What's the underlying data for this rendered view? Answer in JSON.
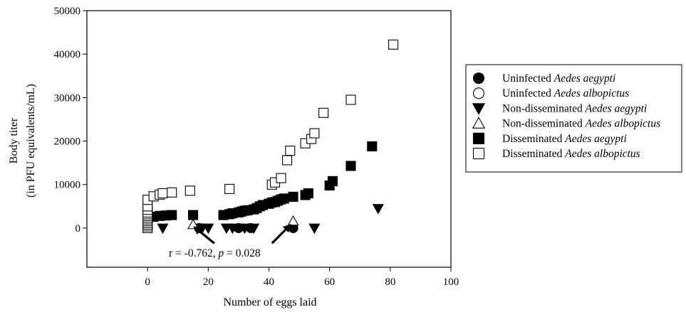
{
  "chart_data": {
    "type": "scatter",
    "xlabel": "Number of eggs laid",
    "ylabel": [
      "Body titer",
      "(in PFU equivalents/mL)"
    ],
    "xlim": [
      -20,
      100
    ],
    "ylim": [
      -9000,
      50000
    ],
    "xticks": [
      0,
      20,
      40,
      60,
      80,
      100
    ],
    "yticks": [
      0,
      10000,
      20000,
      30000,
      40000,
      50000
    ],
    "grid": false,
    "legend_position": "right",
    "series": [
      {
        "name": "Uninfected Aedes aegypti",
        "label_plain": "Uninfected ",
        "label_italic": "Aedes aegypti",
        "marker": "circle",
        "filled": true,
        "color": "#000000",
        "points": [
          [
            17,
            0
          ],
          [
            30,
            0
          ],
          [
            34,
            0
          ],
          [
            48,
            0
          ]
        ]
      },
      {
        "name": "Uninfected Aedes albopictus",
        "label_plain": "Uninfected ",
        "label_italic": "Aedes albopictus",
        "marker": "circle",
        "filled": false,
        "color": "#000000",
        "points": [
          [
            0,
            0
          ]
        ]
      },
      {
        "name": "Non-disseminated Aedes aegypti",
        "label_plain": "Non-disseminated ",
        "label_italic": "Aedes aegypti",
        "marker": "triangle-down",
        "filled": true,
        "color": "#000000",
        "points": [
          [
            5,
            0
          ],
          [
            18,
            0
          ],
          [
            20,
            0
          ],
          [
            26,
            0
          ],
          [
            28,
            0
          ],
          [
            32,
            0
          ],
          [
            35,
            0
          ],
          [
            55,
            0
          ],
          [
            76,
            4500
          ]
        ]
      },
      {
        "name": "Non-disseminated Aedes albopictus",
        "label_plain": "Non-disseminated ",
        "label_italic": "Aedes albopictus",
        "marker": "triangle-up",
        "filled": false,
        "color": "#000000",
        "points": [
          [
            15,
            800
          ],
          [
            48,
            1600
          ]
        ]
      },
      {
        "name": "Disseminated Aedes aegypti",
        "label_plain": "Disseminated ",
        "label_italic": "Aedes aegypti",
        "marker": "square",
        "filled": true,
        "color": "#000000",
        "points": [
          [
            2,
            2600
          ],
          [
            4,
            2800
          ],
          [
            6,
            2900
          ],
          [
            8,
            3000
          ],
          [
            15,
            3000
          ],
          [
            25,
            3000
          ],
          [
            27,
            3200
          ],
          [
            28,
            3400
          ],
          [
            30,
            3600
          ],
          [
            31,
            3800
          ],
          [
            32,
            4000
          ],
          [
            33,
            4100
          ],
          [
            35,
            4300
          ],
          [
            36,
            4600
          ],
          [
            37,
            5000
          ],
          [
            38,
            5300
          ],
          [
            40,
            5600
          ],
          [
            41,
            5900
          ],
          [
            42,
            6000
          ],
          [
            43,
            6300
          ],
          [
            44,
            6600
          ],
          [
            45,
            6800
          ],
          [
            48,
            7200
          ],
          [
            52,
            7600
          ],
          [
            53,
            8000
          ],
          [
            60,
            9800
          ],
          [
            61,
            10800
          ],
          [
            67,
            14300
          ],
          [
            74,
            18800
          ]
        ]
      },
      {
        "name": "Disseminated Aedes albopictus",
        "label_plain": "Disseminated ",
        "label_italic": "Aedes albopictus",
        "marker": "square",
        "filled": false,
        "color": "#000000",
        "points": [
          [
            0,
            0
          ],
          [
            0,
            400
          ],
          [
            0,
            800
          ],
          [
            0,
            1200
          ],
          [
            0,
            1600
          ],
          [
            0,
            2000
          ],
          [
            0,
            2400
          ],
          [
            0,
            2800
          ],
          [
            0,
            3200
          ],
          [
            0,
            3600
          ],
          [
            0,
            4200
          ],
          [
            0,
            5000
          ],
          [
            0,
            6500
          ],
          [
            2,
            7300
          ],
          [
            4,
            7700
          ],
          [
            5,
            8000
          ],
          [
            8,
            8200
          ],
          [
            14,
            8600
          ],
          [
            27,
            9000
          ],
          [
            41,
            10000
          ],
          [
            42,
            10500
          ],
          [
            44,
            11500
          ],
          [
            46,
            15600
          ],
          [
            47,
            17800
          ],
          [
            52,
            19500
          ],
          [
            54,
            20500
          ],
          [
            55,
            21800
          ],
          [
            58,
            26500
          ],
          [
            67,
            29500
          ],
          [
            81,
            42200
          ]
        ]
      }
    ],
    "annotation": {
      "text_before": "r = -0.762, ",
      "text_italic": "p",
      "text_after": " = 0.028"
    },
    "annotation_arrows": [
      {
        "from": [
          22,
          -3500
        ],
        "to": [
          15.5,
          200
        ]
      },
      {
        "from": [
          41,
          -3500
        ],
        "to": [
          47,
          700
        ]
      }
    ]
  }
}
